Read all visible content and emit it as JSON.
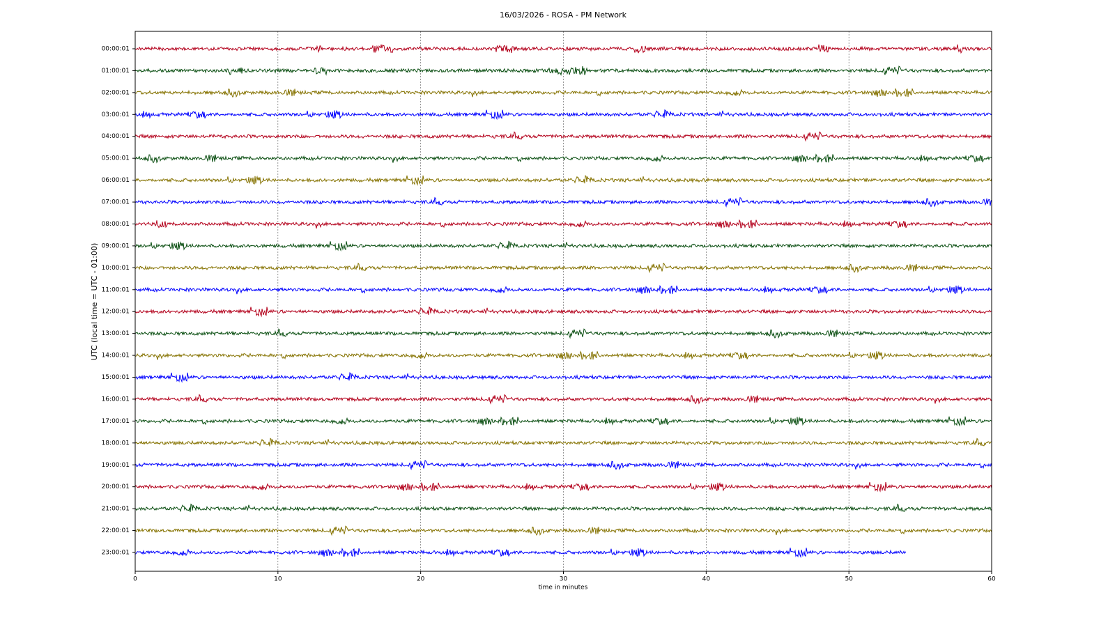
{
  "chart_data": {
    "type": "helicorder",
    "title": "16/03/2026 - ROSA - PM Network",
    "xlabel": "time in minutes",
    "ylabel": "UTC (local time = UTC - 01:00)",
    "xlim": [
      0,
      60
    ],
    "xticks": [
      0,
      10,
      20,
      30,
      40,
      50,
      60
    ],
    "grid": true,
    "series": [
      {
        "name": "00:00:01",
        "color": "#b3001b",
        "x": [
          0,
          60
        ]
      },
      {
        "name": "01:00:01",
        "color": "#0b4f12",
        "x": [
          0,
          60
        ]
      },
      {
        "name": "02:00:01",
        "color": "#857200",
        "x": [
          0,
          60
        ]
      },
      {
        "name": "03:00:01",
        "color": "#0000ff",
        "x": [
          0,
          60
        ]
      },
      {
        "name": "04:00:01",
        "color": "#b3001b",
        "x": [
          0,
          60
        ]
      },
      {
        "name": "05:00:01",
        "color": "#0b4f12",
        "x": [
          0,
          60
        ]
      },
      {
        "name": "06:00:01",
        "color": "#857200",
        "x": [
          0,
          60
        ]
      },
      {
        "name": "07:00:01",
        "color": "#0000ff",
        "x": [
          0,
          60
        ]
      },
      {
        "name": "08:00:01",
        "color": "#b3001b",
        "x": [
          0,
          60
        ]
      },
      {
        "name": "09:00:01",
        "color": "#0b4f12",
        "x": [
          0,
          60
        ]
      },
      {
        "name": "10:00:01",
        "color": "#857200",
        "x": [
          0,
          60
        ]
      },
      {
        "name": "11:00:01",
        "color": "#0000ff",
        "x": [
          0,
          60
        ]
      },
      {
        "name": "12:00:01",
        "color": "#b3001b",
        "x": [
          0,
          60
        ]
      },
      {
        "name": "13:00:01",
        "color": "#0b4f12",
        "x": [
          0,
          60
        ]
      },
      {
        "name": "14:00:01",
        "color": "#857200",
        "x": [
          0,
          60
        ]
      },
      {
        "name": "15:00:01",
        "color": "#0000ff",
        "x": [
          0,
          60
        ]
      },
      {
        "name": "16:00:01",
        "color": "#b3001b",
        "x": [
          0,
          60
        ]
      },
      {
        "name": "17:00:01",
        "color": "#0b4f12",
        "x": [
          0,
          60
        ]
      },
      {
        "name": "18:00:01",
        "color": "#857200",
        "x": [
          0,
          60
        ]
      },
      {
        "name": "19:00:01",
        "color": "#0000ff",
        "x": [
          0,
          60
        ]
      },
      {
        "name": "20:00:01",
        "color": "#b3001b",
        "x": [
          0,
          60
        ]
      },
      {
        "name": "21:00:01",
        "color": "#0b4f12",
        "x": [
          0,
          60
        ]
      },
      {
        "name": "22:00:01",
        "color": "#857200",
        "x": [
          0,
          60
        ]
      },
      {
        "name": "23:00:01",
        "color": "#0000ff",
        "x": [
          0,
          54
        ]
      }
    ]
  }
}
